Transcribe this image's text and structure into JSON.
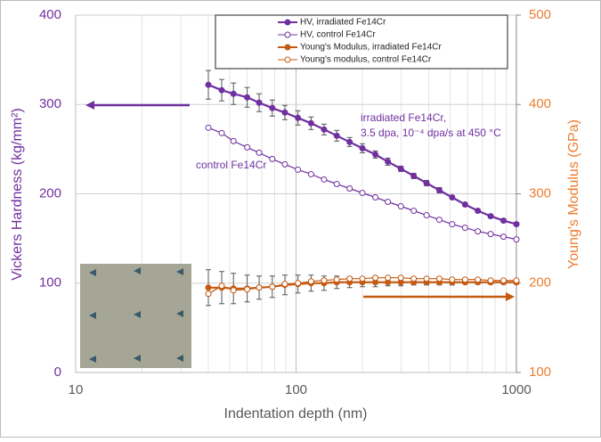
{
  "chart_data": {
    "type": "line",
    "xscale": "log",
    "grid": true,
    "xlabel": "Indentation depth (nm)",
    "ylabel": "Vickers Hardness (kg/mm²)",
    "y2label": "Young's Modulus (GPa)",
    "xlim": [
      10,
      1000
    ],
    "xticks": [
      10,
      100,
      1000
    ],
    "ylim": [
      0,
      400
    ],
    "yticks": [
      0,
      100,
      200,
      300,
      400
    ],
    "y2lim": [
      100,
      500
    ],
    "y2ticks": [
      100,
      200,
      300,
      400,
      500
    ],
    "annotations": [
      "irradiated Fe14Cr,",
      "3.5 dpa, 10⁻⁴ dpa/s at 450 °C",
      "control Fe14Cr"
    ],
    "x": [
      40,
      46,
      52,
      60,
      68,
      78,
      89,
      102,
      117,
      134,
      153,
      175,
      200,
      229,
      261,
      299,
      342,
      391,
      447,
      511,
      585,
      668,
      764,
      874,
      1000
    ],
    "series": [
      {
        "name": "HV, irradiated Fe14Cr",
        "color": "#7030a0",
        "marker_filled": true,
        "values": [
          322,
          316,
          312,
          308,
          302,
          296,
          291,
          285,
          279,
          272,
          265,
          258,
          251,
          244,
          236,
          228,
          220,
          212,
          204,
          196,
          188,
          181,
          175,
          170,
          166
        ],
        "errors": [
          16,
          12,
          12,
          11,
          10,
          9,
          8,
          8,
          7,
          6,
          6,
          5,
          5,
          4,
          4,
          3,
          3,
          3,
          3,
          2,
          2,
          2,
          2,
          2,
          2
        ]
      },
      {
        "name": "HV, control Fe14Cr",
        "color": "#7030a0",
        "marker_filled": false,
        "values": [
          274,
          268,
          259,
          252,
          246,
          239,
          233,
          227,
          222,
          216,
          211,
          206,
          201,
          196,
          191,
          186,
          181,
          176,
          171,
          166,
          162,
          158,
          155,
          152,
          149
        ]
      },
      {
        "name": "Young's Modulus, irradiated Fe14Cr",
        "color": "#c55a11",
        "axis": "y2",
        "marker_filled": true,
        "values": [
          195,
          195,
          194,
          194,
          195,
          196,
          198,
          199,
          200,
          200,
          201,
          201,
          201,
          201,
          201,
          201,
          201,
          201,
          201,
          201,
          201,
          201,
          201,
          201,
          201
        ],
        "errors": [
          20,
          18,
          17,
          15,
          13,
          12,
          11,
          10,
          9,
          8,
          7,
          6,
          5,
          5,
          4,
          4,
          3,
          3,
          3,
          3,
          2,
          2,
          2,
          2,
          2
        ]
      },
      {
        "name": "Young's modulus, control Fe14Cr",
        "color": "#c55a11",
        "axis": "y2",
        "marker_filled": false,
        "values": [
          188,
          197,
          192,
          193,
          195,
          196,
          199,
          200,
          202,
          203,
          204,
          205,
          205,
          206,
          206,
          206,
          205,
          205,
          205,
          204,
          204,
          204,
          203,
          203,
          203
        ]
      }
    ]
  }
}
